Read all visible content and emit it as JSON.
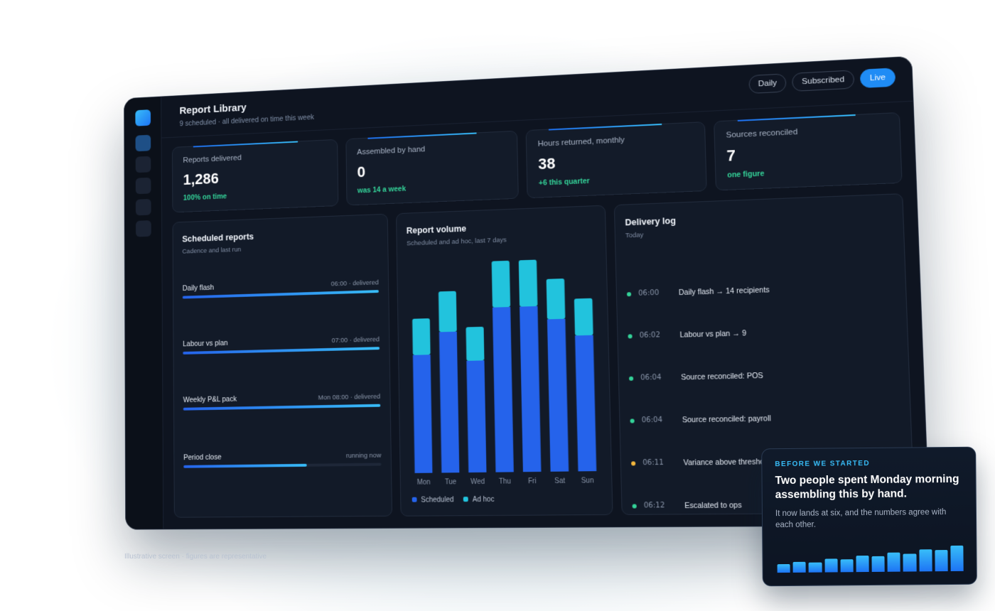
{
  "header": {
    "title": "Report Library",
    "subtitle": "9 scheduled · all delivered on time this week",
    "pills": [
      "Daily",
      "Subscribed",
      "Live"
    ]
  },
  "kpis": [
    {
      "label": "Reports delivered",
      "value": "1,286",
      "delta": "100% on time"
    },
    {
      "label": "Assembled by hand",
      "value": "0",
      "delta": "was 14 a week"
    },
    {
      "label": "Hours returned, monthly",
      "value": "38",
      "delta": "+6 this quarter"
    },
    {
      "label": "Sources reconciled",
      "value": "7",
      "delta": "one figure"
    }
  ],
  "scheduled": {
    "title": "Scheduled reports",
    "subtitle": "Cadence and last run",
    "items": [
      {
        "name": "Daily flash",
        "meta": "06:00 · delivered",
        "progress": 1.0
      },
      {
        "name": "Labour vs plan",
        "meta": "07:00 · delivered",
        "progress": 1.0
      },
      {
        "name": "Weekly P&L pack",
        "meta": "Mon 08:00 · delivered",
        "progress": 1.0
      },
      {
        "name": "Period close",
        "meta": "running now",
        "progress": 0.63
      }
    ]
  },
  "volume": {
    "title": "Report volume",
    "subtitle": "Scheduled and ad hoc, last 7 days",
    "legend": [
      "Scheduled",
      "Ad hoc"
    ]
  },
  "chart_data": {
    "type": "bar",
    "stacked": true,
    "categories": [
      "Mon",
      "Tue",
      "Wed",
      "Thu",
      "Fri",
      "Sat",
      "Sun"
    ],
    "series": [
      {
        "name": "Scheduled",
        "values": [
          168,
          200,
          158,
          233,
          233,
          214,
          190
        ],
        "color": "#2563eb"
      },
      {
        "name": "Ad hoc",
        "values": [
          52,
          58,
          48,
          66,
          66,
          57,
          52
        ],
        "color": "#22c3dd"
      }
    ],
    "ylim": [
      0,
      310
    ],
    "grid": false,
    "legend_position": "bottom-left"
  },
  "delivery": {
    "title": "Delivery log",
    "subtitle": "Today",
    "items": [
      {
        "time": "06:00",
        "text": "Daily flash → 14 recipients",
        "status": "ok"
      },
      {
        "time": "06:02",
        "text": "Labour vs plan → 9",
        "status": "ok"
      },
      {
        "time": "06:04",
        "text": "Source reconciled: POS",
        "status": "ok"
      },
      {
        "time": "06:04",
        "text": "Source reconciled: payroll",
        "status": "ok"
      },
      {
        "time": "06:11",
        "text": "Variance above threshold",
        "status": "warn"
      },
      {
        "time": "06:12",
        "text": "Escalated to ops",
        "status": "ok"
      }
    ]
  },
  "footnote": "Illustrative screen · figures are representative",
  "callout": {
    "eyebrow": "BEFORE WE STARTED",
    "headline": "Two people spent Monday morning assembling this by hand.",
    "body": "It now lands at six, and the numbers agree with each other.",
    "mini_bars": [
      0.3,
      0.38,
      0.36,
      0.47,
      0.45,
      0.58,
      0.54,
      0.67,
      0.62,
      0.78,
      0.76,
      0.9
    ]
  },
  "colors": {
    "accent": "#1f8cf5",
    "positive": "#34d399",
    "warning": "#f5b83d",
    "background": "#0e1420"
  }
}
